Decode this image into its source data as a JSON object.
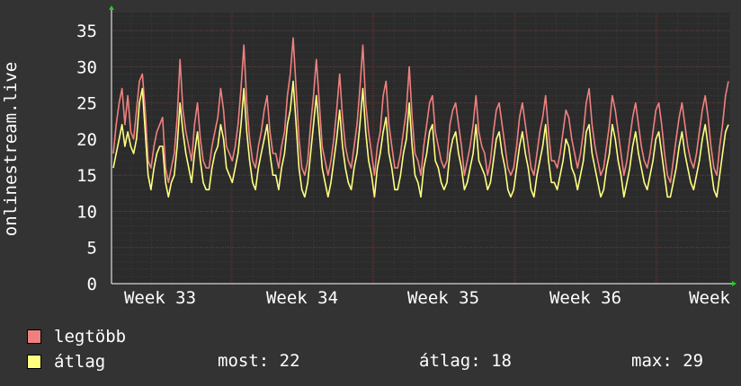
{
  "chart_data": {
    "type": "line",
    "ylabel": "onlinestream.live",
    "ylim": [
      0,
      37.5
    ],
    "yticks": [
      0,
      5,
      10,
      15,
      20,
      25,
      30,
      35
    ],
    "x_tick_labels": [
      "Week 33",
      "Week 34",
      "Week 35",
      "Week 36",
      "Week"
    ],
    "grid": true,
    "series": [
      {
        "name": "legtöbb",
        "color": "#f08080",
        "values": [
          18,
          22,
          25,
          27,
          22,
          26,
          21,
          20,
          24,
          28,
          29,
          24,
          17,
          16,
          19,
          21,
          22,
          23,
          16,
          14,
          16,
          18,
          23,
          31,
          24,
          21,
          19,
          17,
          22,
          25,
          20,
          17,
          16,
          16,
          19,
          21,
          23,
          27,
          24,
          19,
          18,
          17,
          19,
          22,
          27,
          33,
          25,
          20,
          17,
          16,
          19,
          21,
          24,
          26,
          21,
          18,
          18,
          16,
          19,
          21,
          26,
          29,
          34,
          27,
          20,
          16,
          15,
          17,
          22,
          26,
          31,
          25,
          19,
          17,
          15,
          17,
          20,
          24,
          29,
          23,
          19,
          17,
          16,
          19,
          22,
          27,
          33,
          25,
          21,
          18,
          15,
          19,
          21,
          26,
          28,
          22,
          19,
          16,
          16,
          18,
          21,
          24,
          30,
          23,
          18,
          17,
          15,
          19,
          22,
          25,
          26,
          21,
          19,
          17,
          16,
          17,
          22,
          24,
          25,
          22,
          19,
          15,
          17,
          19,
          22,
          26,
          21,
          19,
          18,
          15,
          17,
          21,
          24,
          25,
          22,
          19,
          16,
          15,
          16,
          19,
          23,
          25,
          22,
          19,
          16,
          15,
          18,
          21,
          23,
          26,
          21,
          17,
          17,
          16,
          18,
          21,
          24,
          23,
          20,
          18,
          16,
          18,
          21,
          25,
          27,
          22,
          19,
          17,
          15,
          16,
          19,
          22,
          26,
          24,
          21,
          18,
          15,
          17,
          20,
          23,
          25,
          22,
          19,
          17,
          16,
          18,
          21,
          24,
          25,
          22,
          18,
          15,
          14,
          17,
          20,
          23,
          25,
          22,
          19,
          17,
          16,
          18,
          21,
          24,
          26,
          23,
          19,
          16,
          15,
          19,
          22,
          26,
          28
        ]
      },
      {
        "name": "átlag",
        "color": "#ffff80",
        "values": [
          16,
          18,
          20,
          22,
          19,
          21,
          19,
          18,
          20,
          25,
          27,
          21,
          15,
          13,
          16,
          18,
          19,
          19,
          14,
          12,
          14,
          15,
          19,
          25,
          21,
          18,
          16,
          14,
          18,
          21,
          17,
          14,
          13,
          13,
          16,
          18,
          19,
          22,
          20,
          16,
          15,
          14,
          16,
          18,
          22,
          27,
          21,
          17,
          14,
          13,
          16,
          18,
          20,
          22,
          18,
          15,
          15,
          13,
          16,
          18,
          22,
          24,
          28,
          22,
          16,
          13,
          12,
          14,
          18,
          22,
          26,
          21,
          16,
          14,
          12,
          14,
          17,
          20,
          24,
          19,
          16,
          14,
          13,
          16,
          18,
          22,
          27,
          21,
          17,
          15,
          12,
          16,
          18,
          21,
          23,
          18,
          16,
          13,
          13,
          15,
          18,
          20,
          25,
          19,
          15,
          14,
          12,
          16,
          18,
          21,
          22,
          17,
          16,
          14,
          13,
          14,
          18,
          20,
          21,
          18,
          16,
          13,
          14,
          16,
          18,
          22,
          17,
          16,
          15,
          13,
          14,
          17,
          20,
          21,
          18,
          16,
          13,
          12,
          13,
          16,
          19,
          21,
          18,
          16,
          13,
          12,
          15,
          17,
          19,
          22,
          17,
          14,
          14,
          13,
          15,
          17,
          20,
          19,
          16,
          15,
          13,
          15,
          17,
          21,
          22,
          18,
          16,
          14,
          12,
          13,
          16,
          18,
          22,
          20,
          17,
          15,
          12,
          14,
          16,
          19,
          21,
          18,
          16,
          14,
          13,
          15,
          17,
          20,
          21,
          18,
          15,
          12,
          12,
          14,
          16,
          19,
          21,
          18,
          16,
          14,
          13,
          15,
          17,
          20,
          22,
          19,
          16,
          13,
          12,
          15,
          18,
          21,
          22
        ]
      }
    ]
  },
  "legend": [
    {
      "label": "legtöbb",
      "color": "#f08080"
    },
    {
      "label": "átlag",
      "color": "#ffff80"
    }
  ],
  "stats": {
    "now_label": "most:",
    "now_value": "22",
    "avg_label": "átlag:",
    "avg_value": "18",
    "max_label": "max:",
    "max_value": "29"
  }
}
